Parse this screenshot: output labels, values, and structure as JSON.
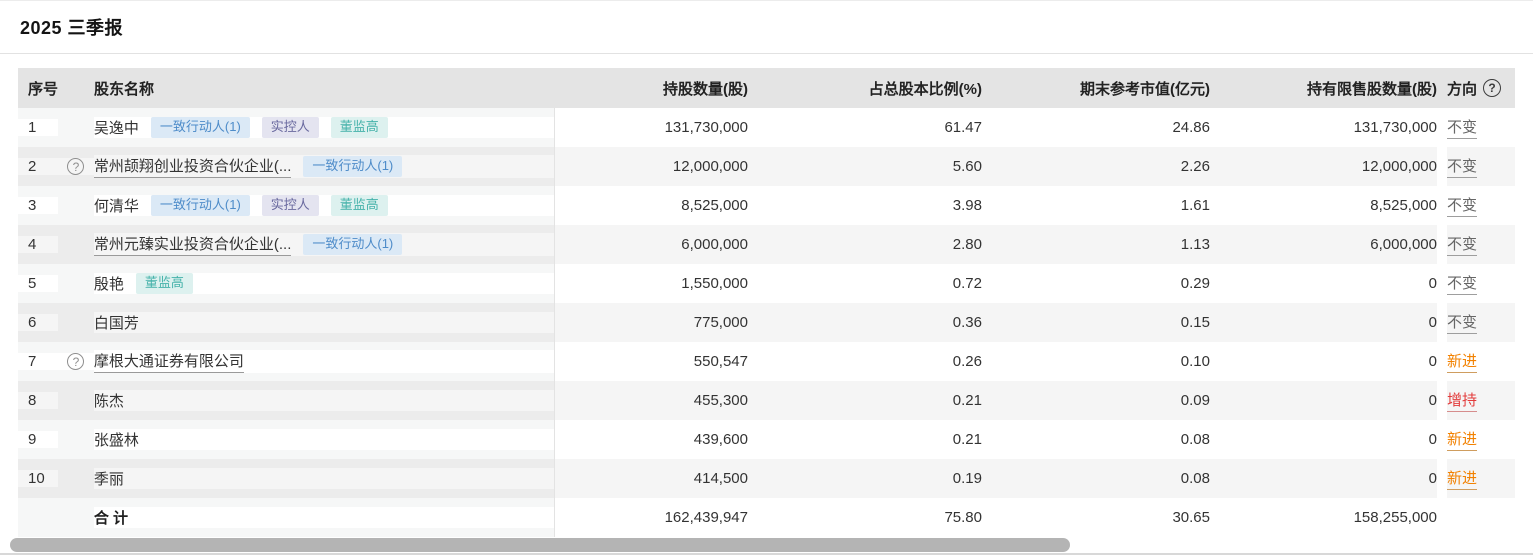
{
  "title": "2025 三季报",
  "help_glyph": "?",
  "table": {
    "headers": {
      "seq": "序号",
      "name": "股东名称",
      "shares": "持股数量(股)",
      "ratio": "占总股本比例(%)",
      "market_value": "期末参考市值(亿元)",
      "restricted": "持有限售股数量(股)",
      "direction": "方向"
    },
    "rows": [
      {
        "seq": "1",
        "has_help": false,
        "name": "吴逸中",
        "name_underline": false,
        "badges": [
          {
            "label": "一致行动人(1)",
            "type": "concert"
          },
          {
            "label": "实控人",
            "type": "controller"
          },
          {
            "label": "董监高",
            "type": "executive"
          }
        ],
        "shares": "131,730,000",
        "ratio": "61.47",
        "market_value": "24.86",
        "restricted": "131,730,000",
        "direction": "不变",
        "direction_type": "unchanged"
      },
      {
        "seq": "2",
        "has_help": true,
        "name": "常州颉翔创业投资合伙企业(...",
        "name_underline": true,
        "badges": [
          {
            "label": "一致行动人(1)",
            "type": "concert"
          }
        ],
        "shares": "12,000,000",
        "ratio": "5.60",
        "market_value": "2.26",
        "restricted": "12,000,000",
        "direction": "不变",
        "direction_type": "unchanged"
      },
      {
        "seq": "3",
        "has_help": false,
        "name": "何清华",
        "name_underline": false,
        "badges": [
          {
            "label": "一致行动人(1)",
            "type": "concert"
          },
          {
            "label": "实控人",
            "type": "controller"
          },
          {
            "label": "董监高",
            "type": "executive"
          }
        ],
        "shares": "8,525,000",
        "ratio": "3.98",
        "market_value": "1.61",
        "restricted": "8,525,000",
        "direction": "不变",
        "direction_type": "unchanged"
      },
      {
        "seq": "4",
        "has_help": false,
        "name": "常州元臻实业投资合伙企业(...",
        "name_underline": true,
        "badges": [
          {
            "label": "一致行动人(1)",
            "type": "concert"
          }
        ],
        "shares": "6,000,000",
        "ratio": "2.80",
        "market_value": "1.13",
        "restricted": "6,000,000",
        "direction": "不变",
        "direction_type": "unchanged"
      },
      {
        "seq": "5",
        "has_help": false,
        "name": "殷艳",
        "name_underline": false,
        "badges": [
          {
            "label": "董监高",
            "type": "executive"
          }
        ],
        "shares": "1,550,000",
        "ratio": "0.72",
        "market_value": "0.29",
        "restricted": "0",
        "direction": "不变",
        "direction_type": "unchanged"
      },
      {
        "seq": "6",
        "has_help": false,
        "name": "白国芳",
        "name_underline": false,
        "badges": [],
        "shares": "775,000",
        "ratio": "0.36",
        "market_value": "0.15",
        "restricted": "0",
        "direction": "不变",
        "direction_type": "unchanged"
      },
      {
        "seq": "7",
        "has_help": true,
        "name": "摩根大通证券有限公司",
        "name_underline": true,
        "badges": [],
        "shares": "550,547",
        "ratio": "0.26",
        "market_value": "0.10",
        "restricted": "0",
        "direction": "新进",
        "direction_type": "new"
      },
      {
        "seq": "8",
        "has_help": false,
        "name": "陈杰",
        "name_underline": false,
        "badges": [],
        "shares": "455,300",
        "ratio": "0.21",
        "market_value": "0.09",
        "restricted": "0",
        "direction": "增持",
        "direction_type": "increase"
      },
      {
        "seq": "9",
        "has_help": false,
        "name": "张盛林",
        "name_underline": false,
        "badges": [],
        "shares": "439,600",
        "ratio": "0.21",
        "market_value": "0.08",
        "restricted": "0",
        "direction": "新进",
        "direction_type": "new"
      },
      {
        "seq": "10",
        "has_help": false,
        "name": "季丽",
        "name_underline": false,
        "badges": [],
        "shares": "414,500",
        "ratio": "0.19",
        "market_value": "0.08",
        "restricted": "0",
        "direction": "新进",
        "direction_type": "new"
      }
    ],
    "total": {
      "label": "合 计",
      "shares": "162,439,947",
      "ratio": "75.80",
      "market_value": "30.65",
      "restricted": "158,255,000",
      "direction": ""
    }
  },
  "colors": {
    "badge_concert_bg": "#dbe9f6",
    "badge_concert_text": "#4e8cc9",
    "badge_controller_bg": "#e4e4f0",
    "badge_controller_text": "#6a6a9f",
    "badge_executive_bg": "#ddf1ef",
    "badge_executive_text": "#45b2aa",
    "direction_unchanged": "#666666",
    "direction_new": "#f28100",
    "direction_increase": "#e23b3b",
    "header_bg": "#e4e4e4",
    "row_alt_bg": "#f5f5f5"
  }
}
